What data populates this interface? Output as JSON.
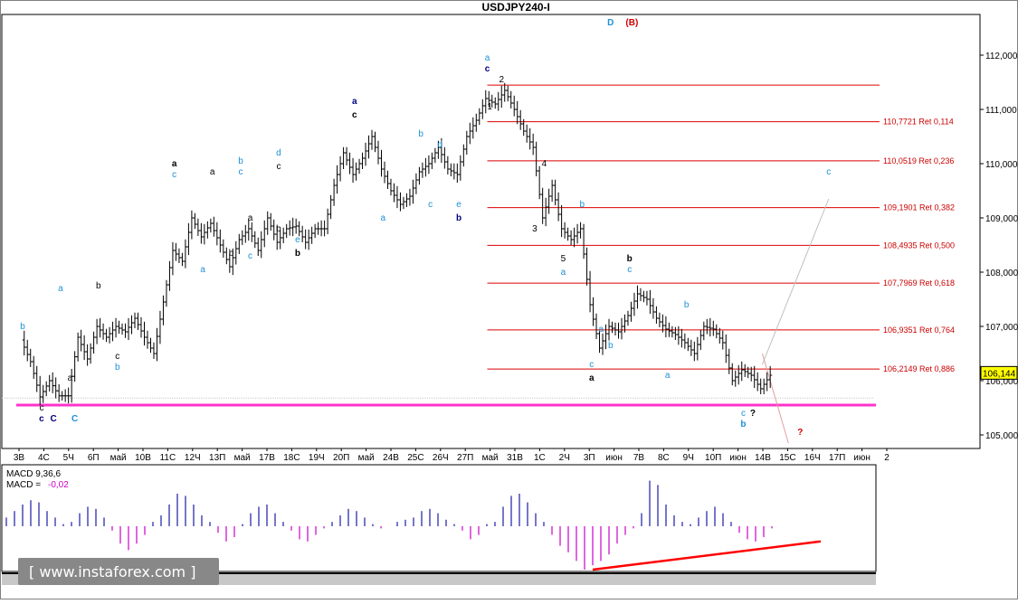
{
  "chart_data": {
    "type": "ohlc",
    "title": "USDJPY240-I",
    "y_axis_side": "right",
    "ylim": [
      104.75,
      112.75
    ],
    "y_ticks": [
      "112,000",
      "111,000",
      "110,000",
      "109,000",
      "108,000",
      "107,000",
      "106,000",
      "105,000"
    ],
    "y_tick_values": [
      112,
      111,
      110,
      109,
      108,
      107,
      106,
      105
    ],
    "current_price": "106,144",
    "current_price_value": 106.144,
    "x_tick_labels": [
      "3В",
      "4С",
      "5Ч",
      "6П",
      "май",
      "10В",
      "11С",
      "12Ч",
      "13П",
      "май",
      "17В",
      "18С",
      "19Ч",
      "20П",
      "май",
      "24В",
      "25С",
      "26Ч",
      "27П",
      "май",
      "31В",
      "1С",
      "2Ч",
      "3П",
      "июн",
      "7В",
      "8С",
      "9Ч",
      "10П",
      "июн",
      "14В",
      "15С",
      "16Ч",
      "17П",
      "июн",
      "2"
    ],
    "price_path": [
      [
        0,
        106.75
      ],
      [
        4,
        106.35
      ],
      [
        8,
        105.7
      ],
      [
        12,
        106.0
      ],
      [
        16,
        105.72
      ],
      [
        20,
        105.72
      ],
      [
        24,
        106.8
      ],
      [
        28,
        106.4
      ],
      [
        32,
        107.0
      ],
      [
        36,
        106.8
      ],
      [
        40,
        107.0
      ],
      [
        44,
        106.9
      ],
      [
        48,
        107.15
      ],
      [
        52,
        106.8
      ],
      [
        56,
        106.5
      ],
      [
        60,
        107.45
      ],
      [
        64,
        108.4
      ],
      [
        68,
        108.2
      ],
      [
        72,
        109.0
      ],
      [
        76,
        108.65
      ],
      [
        80,
        108.9
      ],
      [
        84,
        108.5
      ],
      [
        88,
        108.1
      ],
      [
        92,
        108.6
      ],
      [
        96,
        108.8
      ],
      [
        100,
        108.4
      ],
      [
        104,
        109.0
      ],
      [
        108,
        108.55
      ],
      [
        112,
        108.8
      ],
      [
        116,
        108.85
      ],
      [
        120,
        108.55
      ],
      [
        124,
        108.8
      ],
      [
        128,
        108.8
      ],
      [
        132,
        109.6
      ],
      [
        136,
        110.2
      ],
      [
        140,
        109.8
      ],
      [
        144,
        110.1
      ],
      [
        148,
        110.5
      ],
      [
        152,
        109.9
      ],
      [
        156,
        109.5
      ],
      [
        160,
        109.25
      ],
      [
        164,
        109.4
      ],
      [
        168,
        109.85
      ],
      [
        172,
        110.0
      ],
      [
        176,
        110.3
      ],
      [
        180,
        109.9
      ],
      [
        184,
        109.8
      ],
      [
        188,
        110.5
      ],
      [
        192,
        110.8
      ],
      [
        196,
        111.2
      ],
      [
        200,
        111.1
      ],
      [
        204,
        111.35
      ],
      [
        208,
        111.0
      ],
      [
        212,
        110.6
      ],
      [
        216,
        110.3
      ],
      [
        220,
        109.0
      ],
      [
        224,
        109.6
      ],
      [
        228,
        108.8
      ],
      [
        232,
        108.6
      ],
      [
        236,
        108.8
      ],
      [
        240,
        107.4
      ],
      [
        244,
        106.6
      ],
      [
        248,
        107.0
      ],
      [
        252,
        106.9
      ],
      [
        256,
        107.2
      ],
      [
        260,
        107.6
      ],
      [
        264,
        107.5
      ],
      [
        268,
        107.15
      ],
      [
        272,
        106.95
      ],
      [
        276,
        106.85
      ],
      [
        280,
        106.7
      ],
      [
        284,
        106.5
      ],
      [
        288,
        107.0
      ],
      [
        292,
        106.95
      ],
      [
        296,
        106.7
      ],
      [
        300,
        106.0
      ],
      [
        304,
        106.2
      ],
      [
        308,
        106.1
      ],
      [
        312,
        105.85
      ],
      [
        316,
        106.1
      ]
    ],
    "fib_levels": [
      {
        "label": "",
        "value": 111.448
      },
      {
        "label": "110,7721 Ret 0,114",
        "value": 110.7721
      },
      {
        "label": "110,0519 Ret 0,236",
        "value": 110.0519
      },
      {
        "label": "109,1901 Ret 0,382",
        "value": 109.1901
      },
      {
        "label": "108,4935 Ret 0,500",
        "value": 108.4935
      },
      {
        "label": "107,7969 Ret 0,618",
        "value": 107.7969
      },
      {
        "label": "106,9351 Ret 0,764",
        "value": 106.9351
      },
      {
        "label": "106,2149 Ret 0,886",
        "value": 106.2149
      }
    ],
    "support_level": 105.55,
    "wave_labels": [
      {
        "text": "D",
        "color": "#1e90d6",
        "bold": true,
        "x": 248,
        "y": 112.55
      },
      {
        "text": "(B)",
        "color": "#cc0000",
        "bold": true,
        "x": 257,
        "y": 112.55
      },
      {
        "text": "a",
        "color": "#1e90d6",
        "bold": false,
        "x": 196,
        "y": 111.9
      },
      {
        "text": "c",
        "color": "#000080",
        "bold": true,
        "x": 196,
        "y": 111.7
      },
      {
        "text": "2",
        "color": "#000000",
        "bold": false,
        "x": 202,
        "y": 111.5
      },
      {
        "text": "1",
        "color": "#000000",
        "bold": false,
        "x": 197,
        "y": 111.0
      },
      {
        "text": "4",
        "color": "#000000",
        "bold": false,
        "x": 220,
        "y": 109.95
      },
      {
        "text": "3",
        "color": "#000000",
        "bold": false,
        "x": 216,
        "y": 108.75
      },
      {
        "text": "5",
        "color": "#000000",
        "bold": false,
        "x": 228,
        "y": 108.2
      },
      {
        "text": "a",
        "color": "#1e90d6",
        "bold": false,
        "x": 228,
        "y": 107.95
      },
      {
        "text": "b",
        "color": "#1e90d6",
        "bold": false,
        "x": 236,
        "y": 109.2
      },
      {
        "text": "b",
        "color": "#000000",
        "bold": true,
        "x": 256,
        "y": 108.2
      },
      {
        "text": "c",
        "color": "#1e90d6",
        "bold": false,
        "x": 256,
        "y": 108.0
      },
      {
        "text": "a",
        "color": "#1e90d6",
        "bold": false,
        "x": 244,
        "y": 106.9
      },
      {
        "text": "b",
        "color": "#1e90d6",
        "bold": false,
        "x": 248,
        "y": 106.6
      },
      {
        "text": "c",
        "color": "#1e90d6",
        "bold": false,
        "x": 240,
        "y": 106.25
      },
      {
        "text": "a",
        "color": "#000000",
        "bold": true,
        "x": 240,
        "y": 106.0
      },
      {
        "text": "b",
        "color": "#1e90d6",
        "bold": false,
        "x": 280,
        "y": 107.35
      },
      {
        "text": "a",
        "color": "#1e90d6",
        "bold": false,
        "x": 272,
        "y": 106.05
      },
      {
        "text": "c",
        "color": "#1e90d6",
        "bold": false,
        "x": 304,
        "y": 105.35
      },
      {
        "text": "?",
        "color": "#000000",
        "bold": true,
        "x": 308,
        "y": 105.35
      },
      {
        "text": "b",
        "color": "#1e90d6",
        "bold": true,
        "x": 304,
        "y": 105.15
      },
      {
        "text": "?",
        "color": "#cc0000",
        "bold": true,
        "x": 328,
        "y": 105.0
      },
      {
        "text": "c",
        "color": "#1e90d6",
        "bold": false,
        "x": 340,
        "y": 109.8
      },
      {
        "text": "a",
        "color": "#000080",
        "bold": true,
        "x": 140,
        "y": 111.1
      },
      {
        "text": "c",
        "color": "#000000",
        "bold": true,
        "x": 140,
        "y": 110.85
      },
      {
        "text": "b",
        "color": "#1e90d6",
        "bold": false,
        "x": 168,
        "y": 110.5
      },
      {
        "text": "d",
        "color": "#1e90d6",
        "bold": false,
        "x": 176,
        "y": 110.3
      },
      {
        "text": "c",
        "color": "#1e90d6",
        "bold": false,
        "x": 172,
        "y": 109.2
      },
      {
        "text": "e",
        "color": "#1e90d6",
        "bold": false,
        "x": 184,
        "y": 109.2
      },
      {
        "text": "b",
        "color": "#000080",
        "bold": true,
        "x": 184,
        "y": 108.95
      },
      {
        "text": "a",
        "color": "#1e90d6",
        "bold": false,
        "x": 152,
        "y": 108.95
      },
      {
        "text": "d",
        "color": "#1e90d6",
        "bold": false,
        "x": 108,
        "y": 110.15
      },
      {
        "text": "c",
        "color": "#000000",
        "bold": false,
        "x": 108,
        "y": 109.9
      },
      {
        "text": "e",
        "color": "#1e90d6",
        "bold": false,
        "x": 116,
        "y": 108.55
      },
      {
        "text": "b",
        "color": "#000000",
        "bold": true,
        "x": 116,
        "y": 108.3
      },
      {
        "text": "b",
        "color": "#1e90d6",
        "bold": false,
        "x": 92,
        "y": 110.0
      },
      {
        "text": "c",
        "color": "#1e90d6",
        "bold": false,
        "x": 92,
        "y": 109.8
      },
      {
        "text": "a",
        "color": "#000000",
        "bold": false,
        "x": 80,
        "y": 109.8
      },
      {
        "text": "a",
        "color": "#000000",
        "bold": false,
        "x": 96,
        "y": 108.95
      },
      {
        "text": "b",
        "color": "#000000",
        "bold": false,
        "x": 88,
        "y": 108.3
      },
      {
        "text": "c",
        "color": "#1e90d6",
        "bold": false,
        "x": 96,
        "y": 108.25
      },
      {
        "text": "b",
        "color": "#000000",
        "bold": false,
        "x": 108,
        "y": 108.75
      },
      {
        "text": "a",
        "color": "#000000",
        "bold": true,
        "x": 64,
        "y": 109.95
      },
      {
        "text": "c",
        "color": "#1e90d6",
        "bold": false,
        "x": 64,
        "y": 109.75
      },
      {
        "text": "a",
        "color": "#1e90d6",
        "bold": false,
        "x": 76,
        "y": 108.0
      },
      {
        "text": "a",
        "color": "#1e90d6",
        "bold": false,
        "x": 16,
        "y": 107.65
      },
      {
        "text": "b",
        "color": "#000000",
        "bold": false,
        "x": 32,
        "y": 107.7
      },
      {
        "text": "b",
        "color": "#1e90d6",
        "bold": false,
        "x": 0,
        "y": 106.95
      },
      {
        "text": "c",
        "color": "#000000",
        "bold": false,
        "x": 40,
        "y": 106.4
      },
      {
        "text": "b",
        "color": "#1e90d6",
        "bold": false,
        "x": 40,
        "y": 106.2
      },
      {
        "text": "a",
        "color": "#000000",
        "bold": false,
        "x": 20,
        "y": 106.0
      },
      {
        "text": "c",
        "color": "#000000",
        "bold": false,
        "x": 8,
        "y": 105.45
      },
      {
        "text": "c",
        "color": "#000080",
        "bold": true,
        "x": 8,
        "y": 105.25
      },
      {
        "text": "C",
        "color": "#000080",
        "bold": true,
        "x": 13,
        "y": 105.25
      },
      {
        "text": "C",
        "color": "#1e90d6",
        "bold": true,
        "x": 22,
        "y": 105.25
      }
    ],
    "forecast_line": {
      "from": [
        312,
        106.3
      ],
      "to": [
        340,
        109.35
      ],
      "color": "#c0c0c0"
    },
    "alt_forecast_line": {
      "from": [
        312,
        106.5
      ],
      "to": [
        323,
        104.85
      ],
      "color": "#e0a0a0"
    },
    "macd": {
      "label": "MACD 9,36,6",
      "value_label": "MACD = ",
      "value": "-0,02",
      "values": [
        0.2,
        0.35,
        0.5,
        0.6,
        0.55,
        0.35,
        0.2,
        0.05,
        0.1,
        0.3,
        0.45,
        0.4,
        0.2,
        -0.1,
        -0.4,
        -0.55,
        -0.4,
        -0.2,
        0.1,
        0.25,
        0.5,
        0.75,
        0.7,
        0.5,
        0.25,
        0.1,
        -0.15,
        -0.35,
        -0.25,
        0.05,
        0.3,
        0.45,
        0.5,
        0.3,
        0.1,
        -0.1,
        -0.3,
        -0.35,
        -0.2,
        -0.05,
        0.1,
        0.25,
        0.4,
        0.35,
        0.2,
        0.05,
        -0.05,
        0.0,
        0.1,
        0.15,
        0.2,
        0.35,
        0.4,
        0.3,
        0.15,
        0.05,
        -0.1,
        -0.3,
        -0.2,
        0.05,
        0.1,
        0.45,
        0.7,
        0.75,
        0.55,
        0.3,
        0.1,
        -0.2,
        -0.45,
        -0.6,
        -0.8,
        -1.0,
        -0.9,
        -0.8,
        -0.65,
        -0.4,
        -0.2,
        -0.05,
        0.3,
        1.05,
        0.95,
        0.5,
        0.25,
        0.1,
        0.05,
        0.2,
        0.35,
        0.45,
        0.3,
        0.1,
        -0.15,
        -0.3,
        -0.35,
        -0.25,
        -0.05
      ],
      "trendline": {
        "from": [
          72,
          -1.0
        ],
        "to": [
          100,
          -0.35
        ],
        "color": "#ff0000"
      }
    },
    "watermark": "www.instaforex.com"
  }
}
